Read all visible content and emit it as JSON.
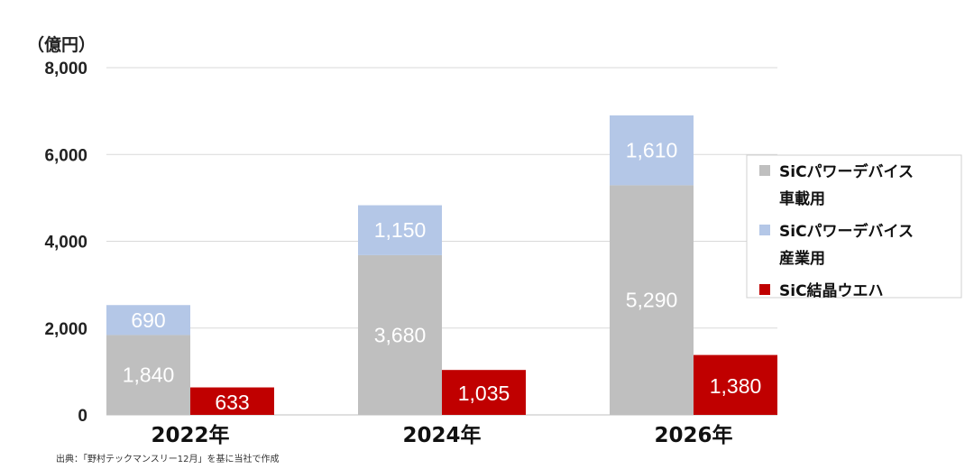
{
  "chart_data": {
    "type": "bar",
    "unit_label": "（億円）",
    "categories": [
      "2022年",
      "2024年",
      "2026年"
    ],
    "ylim": [
      0,
      8000
    ],
    "yticks": [
      0,
      2000,
      4000,
      6000,
      8000
    ],
    "ytick_labels": [
      "0",
      "2,000",
      "4,000",
      "6,000",
      "8,000"
    ],
    "grid": true,
    "legend_position": "right",
    "series": [
      {
        "name_lines": [
          "SiCパワーデバイス",
          "車載用"
        ],
        "values": [
          1840,
          3680,
          5290
        ],
        "value_labels": [
          "1,840",
          "3,680",
          "5,290"
        ],
        "color": "#bfbfbf",
        "stack": "device"
      },
      {
        "name_lines": [
          "SiCパワーデバイス",
          "産業用"
        ],
        "values": [
          690,
          1150,
          1610
        ],
        "value_labels": [
          "690",
          "1,150",
          "1,610"
        ],
        "color": "#b4c7e7",
        "stack": "device"
      },
      {
        "name_lines": [
          "SiC結晶ウエハ"
        ],
        "values": [
          633,
          1035,
          1380
        ],
        "value_labels": [
          "633",
          "1,035",
          "1,380"
        ],
        "color": "#c00000",
        "stack": "wafer"
      }
    ]
  },
  "source": "出典：「野村テックマンスリー12月」を基に当社で作成"
}
